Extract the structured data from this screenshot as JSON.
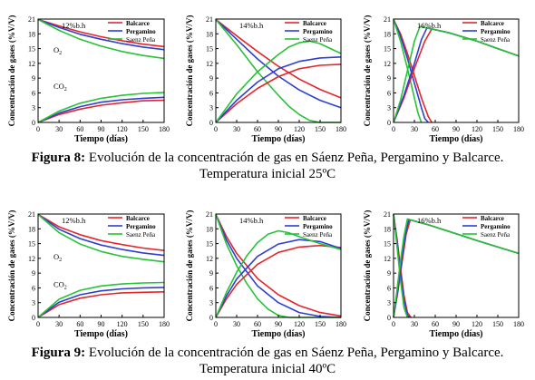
{
  "chart_data": [
    {
      "type": "line",
      "figure": "8",
      "humidity_label": "12%b.h",
      "xlabel": "Tiempo (días)",
      "ylabel": "Concentración de gases (%V/V)",
      "xlim": [
        0,
        180
      ],
      "ylim": [
        0,
        21
      ],
      "xticks": [
        0,
        30,
        60,
        90,
        120,
        150,
        180
      ],
      "yticks": [
        0,
        3,
        6,
        9,
        12,
        15,
        18,
        21
      ],
      "legend": [
        "Balcarce",
        "Pergamino",
        "Saenz Peña"
      ],
      "legend_position": "top-right",
      "annotations": [
        {
          "text": "O",
          "sub": "2",
          "x": 22,
          "y": 14.2
        },
        {
          "text": "CO",
          "sub": "2",
          "x": 22,
          "y": 6.8
        }
      ],
      "series": [
        {
          "name": "Balcarce",
          "gas": "O2",
          "x": [
            0,
            30,
            60,
            90,
            120,
            150,
            180
          ],
          "y": [
            20.9,
            19.6,
            18.4,
            17.4,
            16.6,
            15.9,
            15.4
          ]
        },
        {
          "name": "Pergamino",
          "gas": "O2",
          "x": [
            0,
            30,
            60,
            90,
            120,
            150,
            180
          ],
          "y": [
            20.9,
            19.3,
            17.9,
            16.9,
            16.0,
            15.3,
            14.8
          ]
        },
        {
          "name": "Saenz Peña",
          "gas": "O2",
          "x": [
            0,
            30,
            60,
            90,
            120,
            150,
            180
          ],
          "y": [
            20.9,
            18.7,
            16.9,
            15.5,
            14.4,
            13.6,
            13.0
          ]
        },
        {
          "name": "Balcarce",
          "gas": "CO2",
          "x": [
            0,
            30,
            60,
            90,
            120,
            150,
            180
          ],
          "y": [
            0,
            1.6,
            2.7,
            3.5,
            4.0,
            4.4,
            4.5
          ]
        },
        {
          "name": "Pergamino",
          "gas": "CO2",
          "x": [
            0,
            30,
            60,
            90,
            120,
            150,
            180
          ],
          "y": [
            0,
            1.9,
            3.2,
            4.1,
            4.6,
            4.9,
            5.1
          ]
        },
        {
          "name": "Saenz Peña",
          "gas": "CO2",
          "x": [
            0,
            30,
            60,
            90,
            120,
            150,
            180
          ],
          "y": [
            0,
            2.3,
            3.9,
            4.9,
            5.5,
            5.9,
            6.1
          ]
        }
      ]
    },
    {
      "type": "line",
      "figure": "8",
      "humidity_label": "14%b.h",
      "xlabel": "Tiempo (días)",
      "ylabel": "Concentración de gases (%V/V)",
      "xlim": [
        0,
        180
      ],
      "ylim": [
        0,
        21
      ],
      "xticks": [
        0,
        30,
        60,
        90,
        120,
        150,
        180
      ],
      "yticks": [
        0,
        3,
        6,
        9,
        12,
        15,
        18,
        21
      ],
      "legend": [
        "Balcarce",
        "Pergamino",
        "Saenz Peña"
      ],
      "legend_position": "top-right",
      "series": [
        {
          "name": "Balcarce",
          "gas": "O2",
          "x": [
            0,
            30,
            60,
            90,
            120,
            150,
            180
          ],
          "y": [
            20.9,
            17.6,
            14.4,
            11.4,
            8.8,
            6.7,
            5.0
          ]
        },
        {
          "name": "Pergamino",
          "gas": "O2",
          "x": [
            0,
            30,
            60,
            90,
            120,
            150,
            180
          ],
          "y": [
            20.9,
            16.9,
            12.9,
            9.4,
            6.6,
            4.5,
            3.0
          ]
        },
        {
          "name": "Saenz Peña",
          "gas": "O2",
          "x": [
            0,
            30,
            60,
            90,
            105,
            120,
            135,
            150,
            165,
            180
          ],
          "y": [
            20.9,
            15.8,
            10.3,
            5.5,
            3.3,
            1.6,
            0.4,
            0.0,
            0.0,
            0.0
          ]
        },
        {
          "name": "Balcarce",
          "gas": "CO2",
          "x": [
            0,
            30,
            60,
            90,
            120,
            150,
            180
          ],
          "y": [
            0,
            3.8,
            6.9,
            9.3,
            10.9,
            11.6,
            11.8
          ]
        },
        {
          "name": "Pergamino",
          "gas": "CO2",
          "x": [
            0,
            30,
            60,
            90,
            120,
            150,
            180
          ],
          "y": [
            0,
            4.5,
            8.2,
            10.9,
            12.4,
            13.1,
            13.3
          ]
        },
        {
          "name": "Saenz Peña",
          "gas": "CO2",
          "x": [
            0,
            30,
            60,
            90,
            105,
            120,
            135,
            150,
            165,
            180
          ],
          "y": [
            0,
            5.8,
            10.3,
            13.8,
            15.3,
            16.2,
            16.5,
            16.0,
            15.0,
            14.0
          ]
        }
      ]
    },
    {
      "type": "line",
      "figure": "8",
      "humidity_label": "16%b.h",
      "xlabel": "Tiempo (días)",
      "ylabel": "Concentración de gases (%V/V)",
      "xlim": [
        0,
        180
      ],
      "ylim": [
        0,
        21
      ],
      "xticks": [
        0,
        30,
        60,
        90,
        120,
        150,
        180
      ],
      "yticks": [
        0,
        3,
        6,
        9,
        12,
        15,
        18,
        21
      ],
      "legend": [
        "Balcarce",
        "Pergamino",
        "Saenz Peña"
      ],
      "legend_position": "top-right",
      "series": [
        {
          "name": "Balcarce",
          "gas": "O2",
          "x": [
            0,
            10,
            20,
            30,
            40,
            50,
            55
          ],
          "y": [
            20.9,
            18.0,
            14.0,
            9.5,
            5.0,
            1.2,
            0.0
          ]
        },
        {
          "name": "Pergamino",
          "gas": "O2",
          "x": [
            0,
            10,
            20,
            30,
            40,
            45,
            50
          ],
          "y": [
            20.9,
            17.5,
            13.0,
            8.0,
            3.0,
            0.8,
            0.0
          ]
        },
        {
          "name": "Saenz Peña",
          "gas": "O2",
          "x": [
            0,
            10,
            20,
            30,
            35,
            40
          ],
          "y": [
            20.9,
            16.5,
            11.0,
            5.0,
            2.0,
            0.0
          ]
        },
        {
          "name": "Balcarce",
          "gas": "CO2",
          "x": [
            0,
            15,
            30,
            45,
            55,
            80,
            120,
            150,
            180
          ],
          "y": [
            0,
            5.0,
            11.0,
            16.5,
            19.0,
            18.2,
            16.5,
            15.0,
            13.5
          ]
        },
        {
          "name": "Pergamino",
          "gas": "CO2",
          "x": [
            0,
            15,
            30,
            40,
            48,
            80,
            120,
            150,
            180
          ],
          "y": [
            0,
            5.5,
            12.0,
            16.8,
            19.2,
            18.2,
            16.5,
            15.0,
            13.5
          ]
        },
        {
          "name": "Saenz Peña",
          "gas": "CO2",
          "x": [
            0,
            10,
            20,
            30,
            38,
            80,
            120,
            150,
            180
          ],
          "y": [
            0,
            4.5,
            10.5,
            16.5,
            19.5,
            18.2,
            16.5,
            15.0,
            13.5
          ]
        }
      ]
    },
    {
      "type": "line",
      "figure": "9",
      "humidity_label": "12%b.h",
      "xlabel": "Tiempo (días)",
      "ylabel": "Concentración de gases (%V/V)",
      "xlim": [
        0,
        180
      ],
      "ylim": [
        0,
        21
      ],
      "xticks": [
        0,
        30,
        60,
        90,
        120,
        150,
        180
      ],
      "yticks": [
        0,
        3,
        6,
        9,
        12,
        15,
        18,
        21
      ],
      "legend": [
        "Balcarce",
        "Pergamino",
        "Saenz Peña"
      ],
      "legend_position": "top-right",
      "annotations": [
        {
          "text": "O",
          "sub": "2",
          "x": 22,
          "y": 11.8
        },
        {
          "text": "CO",
          "sub": "2",
          "x": 22,
          "y": 6.2
        }
      ],
      "series": [
        {
          "name": "Balcarce",
          "gas": "O2",
          "x": [
            0,
            30,
            60,
            90,
            120,
            150,
            180
          ],
          "y": [
            20.9,
            18.4,
            16.8,
            15.6,
            14.8,
            14.1,
            13.6
          ]
        },
        {
          "name": "Pergamino",
          "gas": "O2",
          "x": [
            0,
            30,
            60,
            90,
            120,
            150,
            180
          ],
          "y": [
            20.9,
            17.9,
            16.0,
            14.7,
            13.8,
            13.1,
            12.6
          ]
        },
        {
          "name": "Saenz Peña",
          "gas": "O2",
          "x": [
            0,
            30,
            60,
            90,
            120,
            150,
            180
          ],
          "y": [
            20.9,
            17.2,
            14.9,
            13.4,
            12.4,
            11.8,
            11.3
          ]
        },
        {
          "name": "Balcarce",
          "gas": "CO2",
          "x": [
            0,
            30,
            60,
            90,
            120,
            150,
            180
          ],
          "y": [
            0,
            2.6,
            3.9,
            4.6,
            5.0,
            5.1,
            5.2
          ]
        },
        {
          "name": "Pergamino",
          "gas": "CO2",
          "x": [
            0,
            30,
            60,
            90,
            120,
            150,
            180
          ],
          "y": [
            0,
            3.1,
            4.6,
            5.4,
            5.8,
            6.0,
            6.1
          ]
        },
        {
          "name": "Saenz Peña",
          "gas": "CO2",
          "x": [
            0,
            30,
            60,
            90,
            120,
            150,
            180
          ],
          "y": [
            0,
            3.7,
            5.5,
            6.4,
            6.8,
            7.0,
            7.1
          ]
        }
      ]
    },
    {
      "type": "line",
      "figure": "9",
      "humidity_label": "14%b.h",
      "xlabel": "Tiempo (días)",
      "ylabel": "Concentración de gases (%V/V)",
      "xlim": [
        0,
        180
      ],
      "ylim": [
        0,
        21
      ],
      "xticks": [
        0,
        30,
        60,
        90,
        120,
        150,
        180
      ],
      "yticks": [
        0,
        3,
        6,
        9,
        12,
        15,
        18,
        21
      ],
      "legend": [
        "Balcarce",
        "Pergamino",
        "Saenz Peña"
      ],
      "legend_position": "top-right",
      "series": [
        {
          "name": "Balcarce",
          "gas": "O2",
          "x": [
            0,
            15,
            30,
            60,
            90,
            120,
            150,
            180
          ],
          "y": [
            20.9,
            16.5,
            13.0,
            7.9,
            4.6,
            2.4,
            1.0,
            0.3
          ]
        },
        {
          "name": "Pergamino",
          "gas": "O2",
          "x": [
            0,
            15,
            30,
            60,
            90,
            120,
            150,
            180
          ],
          "y": [
            20.9,
            15.8,
            12.0,
            6.4,
            3.0,
            1.0,
            0.2,
            0.0
          ]
        },
        {
          "name": "Saenz Peña",
          "gas": "O2",
          "x": [
            0,
            15,
            30,
            45,
            60,
            75,
            90,
            105,
            120,
            150,
            180
          ],
          "y": [
            20.9,
            15.0,
            10.5,
            6.8,
            3.8,
            1.7,
            0.4,
            0.0,
            0.0,
            0.0,
            0.0
          ]
        },
        {
          "name": "Balcarce",
          "gas": "CO2",
          "x": [
            0,
            15,
            30,
            60,
            90,
            120,
            150,
            180
          ],
          "y": [
            0,
            3.7,
            6.7,
            10.8,
            13.2,
            14.3,
            14.6,
            14.2
          ]
        },
        {
          "name": "Pergamino",
          "gas": "CO2",
          "x": [
            0,
            15,
            30,
            60,
            90,
            120,
            150,
            180
          ],
          "y": [
            0,
            4.3,
            7.8,
            12.4,
            14.9,
            15.8,
            15.4,
            14.0
          ]
        },
        {
          "name": "Saenz Peña",
          "gas": "CO2",
          "x": [
            0,
            15,
            30,
            45,
            60,
            75,
            90,
            105,
            120,
            150,
            180
          ],
          "y": [
            0,
            5.0,
            9.2,
            12.6,
            15.2,
            16.9,
            17.6,
            17.2,
            16.4,
            15.0,
            13.8
          ]
        }
      ]
    },
    {
      "type": "line",
      "figure": "9",
      "humidity_label": "16%b.h",
      "xlabel": "Tiempo (días)",
      "ylabel": "Concentración de gases (%V/V)",
      "xlim": [
        0,
        180
      ],
      "ylim": [
        0,
        21
      ],
      "xticks": [
        0,
        30,
        60,
        90,
        120,
        150,
        180
      ],
      "yticks": [
        0,
        3,
        6,
        9,
        12,
        15,
        18,
        21
      ],
      "legend": [
        "Balcarce",
        "Pergamino",
        "Saenz Peña"
      ],
      "legend_position": "top-right",
      "series": [
        {
          "name": "Balcarce",
          "gas": "O2",
          "x": [
            0,
            5,
            10,
            15,
            20,
            25
          ],
          "y": [
            20.9,
            16.0,
            10.0,
            4.5,
            1.0,
            0.0
          ]
        },
        {
          "name": "Pergamino",
          "gas": "O2",
          "x": [
            0,
            5,
            10,
            15,
            20,
            23
          ],
          "y": [
            20.9,
            15.5,
            9.0,
            3.5,
            0.5,
            0.0
          ]
        },
        {
          "name": "Saenz Peña",
          "gas": "O2",
          "x": [
            0,
            5,
            10,
            15,
            20
          ],
          "y": [
            20.9,
            14.5,
            7.5,
            2.0,
            0.0
          ]
        },
        {
          "name": "Balcarce",
          "gas": "CO2",
          "x": [
            0,
            6,
            12,
            18,
            24,
            50,
            90,
            120,
            150,
            180
          ],
          "y": [
            0,
            5.0,
            11.0,
            16.8,
            19.8,
            18.8,
            17.0,
            15.6,
            14.3,
            13.0
          ]
        },
        {
          "name": "Pergamino",
          "gas": "CO2",
          "x": [
            0,
            6,
            12,
            18,
            22,
            50,
            90,
            120,
            150,
            180
          ],
          "y": [
            0,
            5.5,
            12.0,
            17.5,
            19.9,
            18.8,
            17.0,
            15.6,
            14.3,
            13.0
          ]
        },
        {
          "name": "Saenz Peña",
          "gas": "CO2",
          "x": [
            0,
            5,
            10,
            15,
            20,
            50,
            90,
            120,
            150,
            180
          ],
          "y": [
            0,
            5.5,
            11.5,
            16.5,
            20.0,
            18.8,
            17.0,
            15.6,
            14.3,
            13.0
          ]
        }
      ]
    }
  ],
  "colors": {
    "Balcarce": "#e3262b",
    "Pergamino": "#2e3fd1",
    "Saenz Peña": "#27c236"
  },
  "captions": {
    "fig8": {
      "bold": "Figura 8:",
      "line1": " Evolución de la concentración de gas en Sáenz Peña, Pergamino y Balcarce.",
      "line2": "Temperatura inicial 25ºC"
    },
    "fig9": {
      "bold": "Figura 9:",
      "line1": " Evolución de la concentración de gas en Sáenz Peña, Pergamino y Balcarce.",
      "line2": "Temperatura inicial 40ºC"
    }
  }
}
